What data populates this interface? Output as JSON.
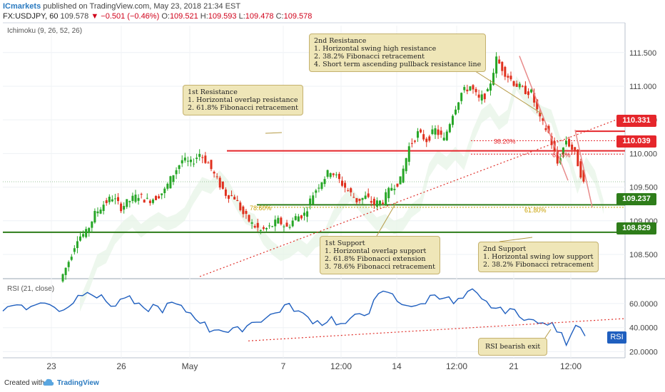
{
  "header": {
    "brand": "ICmarkets",
    "published": " published on TradingView.com, May 23, 2018 21:34 EST",
    "symbol": "FX:USDJPY, 60",
    "price": "109.578",
    "change_arrow": "▼",
    "change": "−0.501 (−0.46%)",
    "o_label": "O:",
    "o": "109.521",
    "h_label": "H:",
    "h": "109.593",
    "l_label": "L:",
    "l": "109.478",
    "c_label": "C:",
    "c": "109.578"
  },
  "indicators": {
    "ichimoku": "Ichimoku (9, 26, 52, 26)",
    "rsi": "RSI (21, close)",
    "rsi_badge": "RSI"
  },
  "annotations": [
    {
      "lines": [
        "1st Resistance",
        "1. Horizontal overlap resistance",
        "2. 61.8% Fibonacci retracement"
      ]
    },
    {
      "lines": [
        "2nd Resistance",
        "1. Horizontal swing high resistance",
        "2. 38.2% Fibonacci retracement",
        "4. Short term ascending pullback resistance line"
      ]
    },
    {
      "lines": [
        "1st Support",
        "1. Horizontal overlap support",
        "2. 61.8% Fibonacci extension",
        "3. 78.6% Fibonacci retracement"
      ]
    },
    {
      "lines": [
        "2nd Support",
        "1. Horizontal swing low support",
        "2. 38.2% Fibonacci retracement"
      ]
    },
    {
      "lines": [
        "RSI bearish exit"
      ]
    }
  ],
  "price_tags": [
    {
      "label": "110.331",
      "color": "#e5262b"
    },
    {
      "label": "110.039",
      "color": "#e5262b"
    },
    {
      "label": "109.237",
      "color": "#2e7d1a"
    },
    {
      "label": "108.829",
      "color": "#2e7d1a"
    }
  ],
  "fib_labels": [
    "38.20%",
    "61.8%",
    "78.60%",
    "61.80%"
  ],
  "footer": {
    "created": "Created with",
    "tv": "TradingView"
  },
  "colors": {
    "up": "#26a626",
    "down": "#e0301e",
    "resistance": "#e5262b",
    "support": "#2e7d1a",
    "rsi_line": "#1f5fbf",
    "trendline": "#e0302a",
    "annotation_bg": "#efe6b8"
  },
  "chart_data": {
    "type": "line",
    "title": "FX:USDJPY, 60",
    "price_axis": {
      "ticks": [
        "111.500",
        "111.000",
        "110.500",
        "110.000",
        "109.500",
        "109.000",
        "108.500"
      ],
      "ylim": [
        108.15,
        111.9
      ]
    },
    "time_axis": {
      "ticks": [
        "23",
        "26",
        "May",
        "7",
        "12:00",
        "14",
        "12:00",
        "21",
        "12:00"
      ]
    },
    "levels": [
      {
        "name": "2nd Resistance",
        "value": 110.331
      },
      {
        "name": "1st Resistance",
        "value": 110.039
      },
      {
        "name": "1st Support",
        "value": 109.237
      },
      {
        "name": "2nd Support",
        "value": 108.829
      }
    ],
    "series": [
      {
        "name": "USDJPY",
        "values": [
          108.1,
          108.4,
          108.75,
          108.82,
          109.1,
          109.25,
          109.35,
          109.2,
          109.3,
          109.38,
          109.3,
          109.35,
          109.45,
          109.7,
          109.9,
          109.85,
          110.0,
          109.85,
          109.6,
          109.4,
          109.35,
          109.1,
          108.95,
          108.85,
          108.9,
          109.0,
          108.9,
          109.05,
          109.1,
          109.4,
          109.6,
          109.75,
          109.6,
          109.45,
          109.3,
          109.35,
          109.25,
          109.3,
          109.5,
          109.6,
          110.1,
          110.3,
          110.2,
          110.35,
          110.2,
          110.6,
          110.9,
          111.0,
          110.8,
          110.9,
          111.4,
          111.2,
          111.05,
          110.95,
          110.9,
          110.5,
          110.3,
          109.85,
          110.2,
          110.0,
          109.55
        ]
      }
    ],
    "rsi": {
      "ticks": [
        "60.0000",
        "40.0000",
        "20.0000"
      ],
      "ylim": [
        15,
        80
      ],
      "values": [
        55,
        58,
        60,
        56,
        62,
        58,
        55,
        58,
        66,
        72,
        66,
        62,
        58,
        66,
        60,
        54,
        58,
        55,
        60,
        56,
        52,
        46,
        38,
        40,
        36,
        38,
        42,
        46,
        48,
        52,
        58,
        56,
        50,
        46,
        44,
        48,
        42,
        45,
        52,
        54,
        66,
        70,
        62,
        60,
        56,
        62,
        68,
        66,
        60,
        64,
        70,
        62,
        58,
        54,
        56,
        48,
        50,
        42,
        44,
        38,
        28,
        44,
        36
      ]
    }
  }
}
